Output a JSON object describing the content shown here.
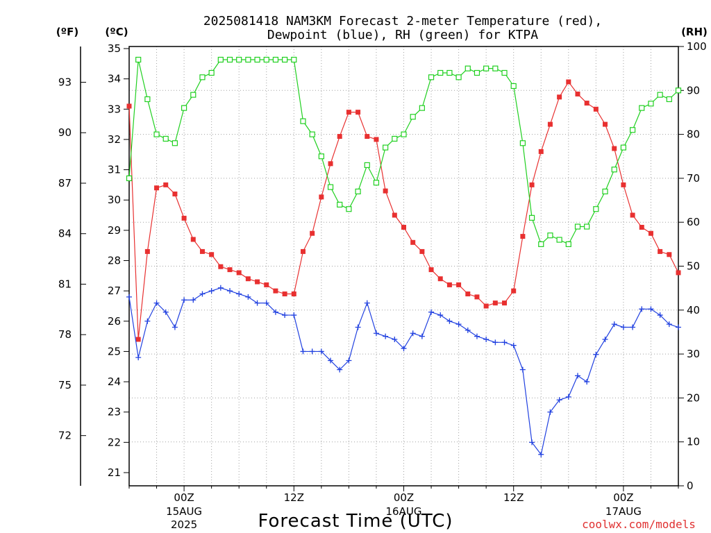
{
  "title_line1": "2025081418 NAM3KM Forecast 2-meter Temperature (red),",
  "title_line2": "Dewpoint (blue), RH (green) for KTPA",
  "unit_f": "(ºF)",
  "unit_c": "(ºC)",
  "unit_rh": "(RH)",
  "xlabel": "Forecast Time (UTC)",
  "credit": "coolwx.com/models",
  "colors": {
    "temperature": "#e83030",
    "dewpoint": "#2040e0",
    "rh": "#20d020",
    "grid": "#a0a0a0"
  },
  "chart_data": {
    "type": "line",
    "x_unit": "forecast hour from 2025-08-14 18Z",
    "x_range": [
      0,
      60
    ],
    "left_axis_c": {
      "ylim": [
        20.7,
        35.1
      ],
      "ticks": [
        21,
        22,
        23,
        24,
        25,
        26,
        27,
        28,
        29,
        30,
        31,
        32,
        33,
        34,
        35
      ]
    },
    "left_axis_f": {
      "ticks": [
        72,
        75,
        78,
        81,
        84,
        87,
        90,
        93
      ]
    },
    "right_axis_rh": {
      "ylim": [
        0,
        100
      ],
      "ticks": [
        0,
        10,
        20,
        30,
        40,
        50,
        60,
        70,
        80,
        90,
        100
      ]
    },
    "x_ticks": [
      {
        "hour": 6,
        "line1": "00Z",
        "line2": "15AUG",
        "line3": "2025"
      },
      {
        "hour": 18,
        "line1": "12Z",
        "line2": "",
        "line3": ""
      },
      {
        "hour": 30,
        "line1": "00Z",
        "line2": "16AUG",
        "line3": ""
      },
      {
        "hour": 42,
        "line1": "12Z",
        "line2": "",
        "line3": ""
      },
      {
        "hour": 54,
        "line1": "00Z",
        "line2": "17AUG",
        "line3": ""
      }
    ],
    "series": [
      {
        "name": "Temperature (red)",
        "axis": "celsius",
        "marker": "filled-square",
        "x": [
          0,
          1,
          2,
          3,
          4,
          5,
          6,
          7,
          8,
          9,
          10,
          11,
          12,
          13,
          14,
          15,
          16,
          17,
          18,
          19,
          20,
          21,
          22,
          23,
          24,
          25,
          26,
          27,
          28,
          29,
          30,
          31,
          32,
          33,
          34,
          35,
          36,
          37,
          38,
          39,
          40,
          41,
          42,
          43,
          44,
          45,
          46,
          47,
          48,
          49,
          50,
          51,
          52,
          53,
          54,
          55,
          56,
          57,
          58,
          59,
          60
        ],
        "values": [
          33.1,
          25.4,
          28.3,
          30.4,
          30.5,
          30.2,
          29.4,
          28.7,
          28.3,
          28.2,
          27.8,
          27.7,
          27.6,
          27.4,
          27.3,
          27.2,
          27.0,
          26.9,
          26.9,
          28.3,
          28.9,
          30.1,
          31.2,
          32.1,
          32.9,
          32.9,
          32.1,
          32.0,
          30.3,
          29.5,
          29.1,
          28.6,
          28.3,
          27.7,
          27.4,
          27.2,
          27.2,
          26.9,
          26.8,
          26.5,
          26.6,
          26.6,
          27.0,
          28.8,
          30.5,
          31.6,
          32.5,
          33.4,
          33.9,
          33.5,
          33.2,
          33.0,
          32.5,
          31.7,
          30.5,
          29.5,
          29.1,
          28.9,
          28.3,
          28.2,
          27.6
        ]
      },
      {
        "name": "Dewpoint (blue)",
        "axis": "celsius",
        "marker": "plus",
        "x": [
          0,
          1,
          2,
          3,
          4,
          5,
          6,
          7,
          8,
          9,
          10,
          11,
          12,
          13,
          14,
          15,
          16,
          17,
          18,
          19,
          20,
          21,
          22,
          23,
          24,
          25,
          26,
          27,
          28,
          29,
          30,
          31,
          32,
          33,
          34,
          35,
          36,
          37,
          38,
          39,
          40,
          41,
          42,
          43,
          44,
          45,
          46,
          47,
          48,
          49,
          50,
          51,
          52,
          53,
          54,
          55,
          56,
          57,
          58,
          59,
          60
        ],
        "values": [
          26.8,
          24.8,
          26.0,
          26.6,
          26.3,
          25.8,
          26.7,
          26.7,
          26.9,
          27.0,
          27.1,
          27.0,
          26.9,
          26.8,
          26.6,
          26.6,
          26.3,
          26.2,
          26.2,
          25.0,
          25.0,
          25.0,
          24.7,
          24.4,
          24.7,
          25.8,
          26.6,
          25.6,
          25.5,
          25.4,
          25.1,
          25.6,
          25.5,
          26.3,
          26.2,
          26.0,
          25.9,
          25.7,
          25.5,
          25.4,
          25.3,
          25.3,
          25.2,
          24.4,
          22.0,
          21.6,
          23.0,
          23.4,
          23.5,
          24.2,
          24.0,
          24.9,
          25.4,
          25.9,
          25.8,
          25.8,
          26.4,
          26.4,
          26.2,
          25.9,
          25.8
        ]
      },
      {
        "name": "RH (green)",
        "axis": "rh",
        "marker": "open-square",
        "x": [
          0,
          1,
          2,
          3,
          4,
          5,
          6,
          7,
          8,
          9,
          10,
          11,
          12,
          13,
          14,
          15,
          16,
          17,
          18,
          19,
          20,
          21,
          22,
          23,
          24,
          25,
          26,
          27,
          28,
          29,
          30,
          31,
          32,
          33,
          34,
          35,
          36,
          37,
          38,
          39,
          40,
          41,
          42,
          43,
          44,
          45,
          46,
          47,
          48,
          49,
          50,
          51,
          52,
          53,
          54,
          55,
          56,
          57,
          58,
          59,
          60
        ],
        "values": [
          70,
          97,
          88,
          80,
          79,
          78,
          86,
          89,
          93,
          94,
          97,
          97,
          97,
          97,
          97,
          97,
          97,
          97,
          97,
          83,
          80,
          75,
          68,
          64,
          63,
          67,
          73,
          69,
          77,
          79,
          80,
          84,
          86,
          93,
          94,
          94,
          93,
          95,
          94,
          95,
          95,
          94,
          91,
          78,
          61,
          55,
          57,
          56,
          55,
          59,
          59,
          63,
          67,
          72,
          77,
          81,
          86,
          87,
          89,
          88,
          90
        ]
      }
    ]
  }
}
